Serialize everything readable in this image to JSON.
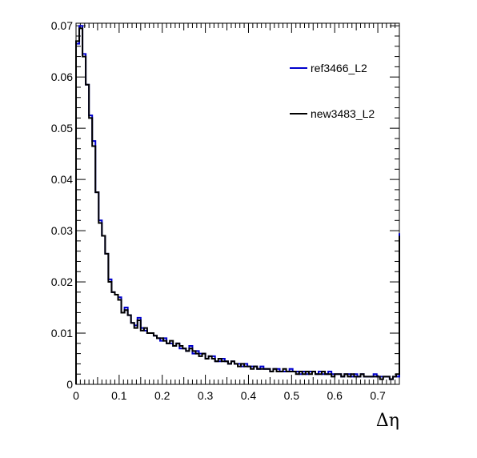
{
  "chart_data": {
    "type": "line",
    "title": "",
    "xlabel": "Δη",
    "ylabel": "",
    "xlim": [
      0,
      0.75
    ],
    "ylim": [
      0,
      0.0705
    ],
    "grid": false,
    "legend_position": "top-right",
    "x_ticks": [
      {
        "value": 0,
        "label": "0"
      },
      {
        "value": 0.1,
        "label": "0.1"
      },
      {
        "value": 0.2,
        "label": "0.2"
      },
      {
        "value": 0.3,
        "label": "0.3"
      },
      {
        "value": 0.4,
        "label": "0.4"
      },
      {
        "value": 0.5,
        "label": "0.5"
      },
      {
        "value": 0.6,
        "label": "0.6"
      },
      {
        "value": 0.7,
        "label": "0.7"
      }
    ],
    "y_ticks": [
      {
        "value": 0,
        "label": "0"
      },
      {
        "value": 0.01,
        "label": "0.01"
      },
      {
        "value": 0.02,
        "label": "0.02"
      },
      {
        "value": 0.03,
        "label": "0.03"
      },
      {
        "value": 0.04,
        "label": "0.04"
      },
      {
        "value": 0.05,
        "label": "0.05"
      },
      {
        "value": 0.06,
        "label": "0.06"
      },
      {
        "value": 0.07,
        "label": "0.07"
      }
    ],
    "bin_width": 0.0075,
    "series": [
      {
        "name": "ref3466_L2",
        "color": "#0000cc",
        "values": [
          0.0665,
          0.07,
          0.0645,
          0.0585,
          0.0525,
          0.0475,
          0.0375,
          0.032,
          0.029,
          0.0255,
          0.0205,
          0.018,
          0.0175,
          0.017,
          0.014,
          0.015,
          0.0135,
          0.012,
          0.0115,
          0.013,
          0.011,
          0.0105,
          0.01,
          0.01,
          0.0095,
          0.009,
          0.0085,
          0.009,
          0.008,
          0.008,
          0.0075,
          0.008,
          0.007,
          0.007,
          0.0065,
          0.0075,
          0.006,
          0.0065,
          0.006,
          0.006,
          0.005,
          0.0055,
          0.0055,
          0.0045,
          0.0045,
          0.005,
          0.0045,
          0.004,
          0.0045,
          0.004,
          0.004,
          0.0035,
          0.004,
          0.0035,
          0.0035,
          0.0035,
          0.003,
          0.0035,
          0.003,
          0.003,
          0.0025,
          0.003,
          0.003,
          0.0025,
          0.0025,
          0.0025,
          0.003,
          0.0025,
          0.0025,
          0.002,
          0.0025,
          0.002,
          0.0025,
          0.0025,
          0.002,
          0.0025,
          0.002,
          0.002,
          0.0025,
          0.002,
          0.002,
          0.002,
          0.0015,
          0.002,
          0.002,
          0.0015,
          0.002,
          0.0015,
          0.002,
          0.0015,
          0.0015,
          0.0015,
          0.002,
          0.0015,
          0.0015,
          0.0015,
          0.0015,
          0.001,
          0.0015,
          0.0015,
          0.0295
        ]
      },
      {
        "name": "new3483_L2",
        "color": "#000000",
        "values": [
          0.067,
          0.0695,
          0.064,
          0.0585,
          0.052,
          0.0465,
          0.0375,
          0.0315,
          0.029,
          0.0255,
          0.02,
          0.018,
          0.0175,
          0.0165,
          0.014,
          0.0145,
          0.0135,
          0.012,
          0.011,
          0.0125,
          0.0105,
          0.011,
          0.01,
          0.01,
          0.0095,
          0.009,
          0.009,
          0.0085,
          0.008,
          0.0085,
          0.0075,
          0.008,
          0.0075,
          0.007,
          0.0065,
          0.007,
          0.0065,
          0.006,
          0.0055,
          0.006,
          0.005,
          0.0055,
          0.005,
          0.0045,
          0.005,
          0.0045,
          0.0045,
          0.004,
          0.0045,
          0.004,
          0.0035,
          0.004,
          0.0035,
          0.0035,
          0.003,
          0.0035,
          0.003,
          0.003,
          0.003,
          0.003,
          0.0025,
          0.003,
          0.0025,
          0.0025,
          0.003,
          0.0025,
          0.0025,
          0.0025,
          0.002,
          0.0025,
          0.002,
          0.0025,
          0.002,
          0.0025,
          0.002,
          0.002,
          0.0025,
          0.002,
          0.002,
          0.0015,
          0.002,
          0.002,
          0.0015,
          0.002,
          0.0015,
          0.002,
          0.0015,
          0.0015,
          0.002,
          0.0015,
          0.0015,
          0.0015,
          0.0015,
          0.0015,
          0.001,
          0.0015,
          0.0015,
          0.001,
          0.0015,
          0.002,
          0.029
        ]
      }
    ]
  }
}
